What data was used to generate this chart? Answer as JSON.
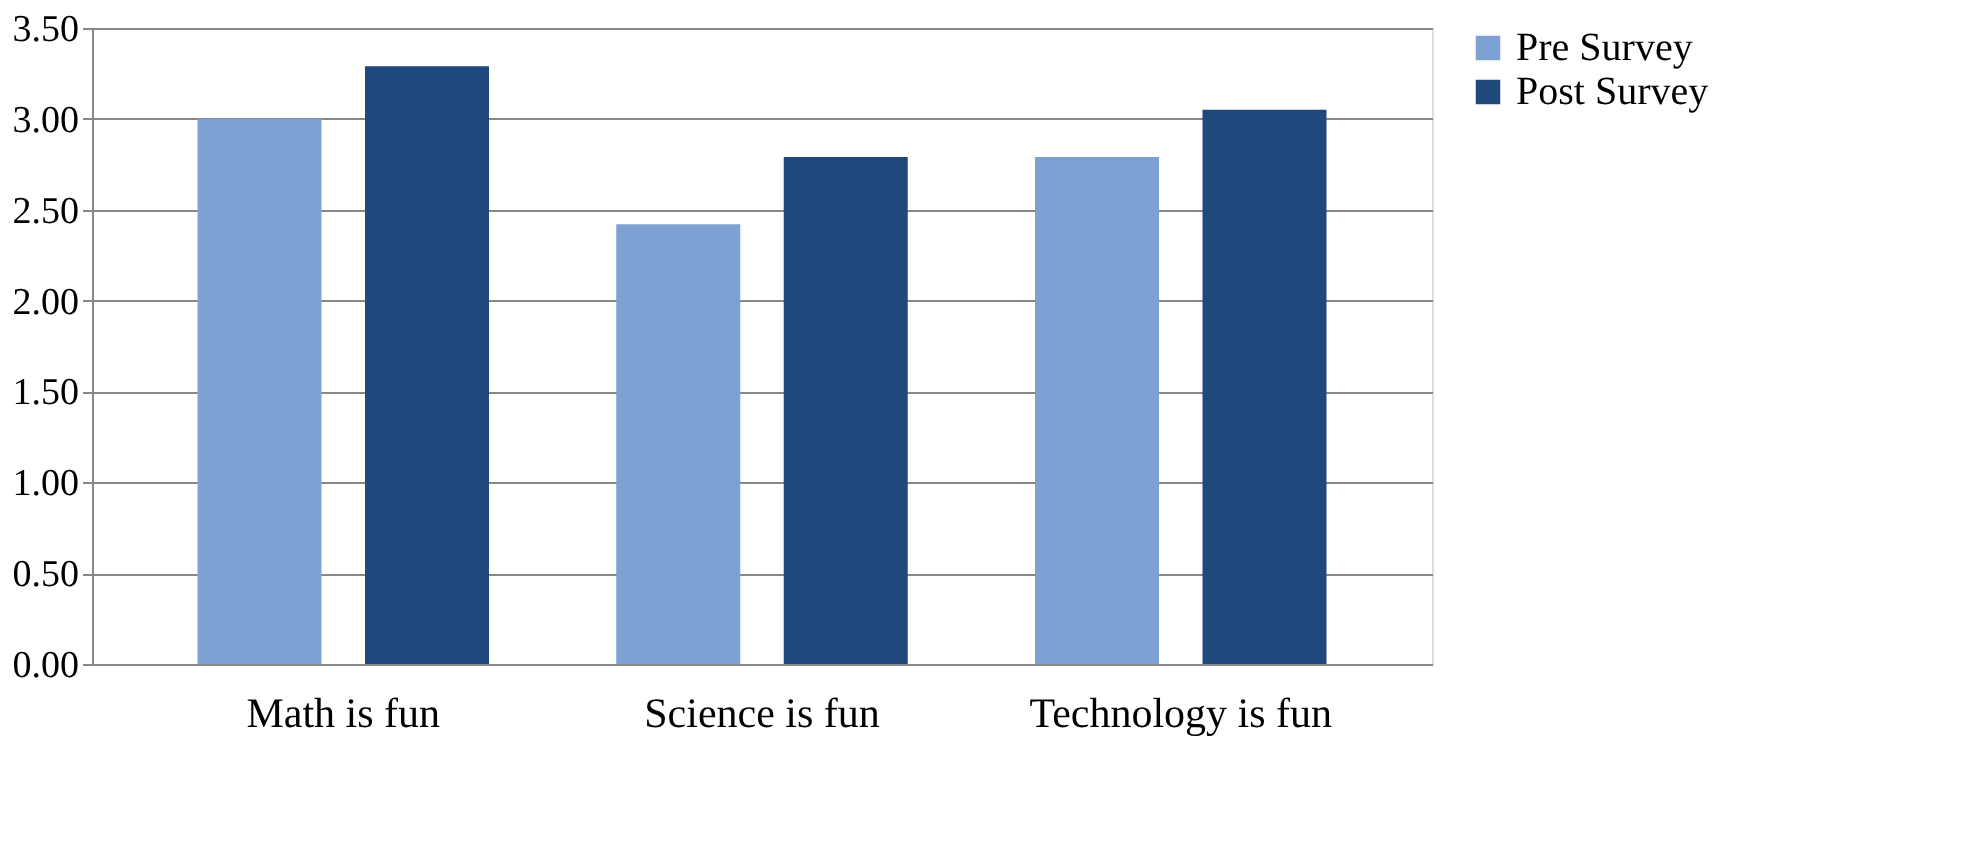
{
  "chart_data": {
    "type": "bar",
    "categories": [
      "Math is fun",
      "Science is fun",
      "Technology is fun"
    ],
    "series": [
      {
        "name": "Pre Survey",
        "color": "#7ea1d3",
        "values": [
          3.0,
          2.42,
          2.79
        ]
      },
      {
        "name": "Post Survey",
        "color": "#1f497d",
        "values": [
          3.29,
          2.79,
          3.05
        ]
      }
    ],
    "ylim": [
      0,
      3.5
    ],
    "yticks": [
      {
        "value": 0,
        "label": "0.00"
      },
      {
        "value": 0.5,
        "label": "0.50"
      },
      {
        "value": 1,
        "label": "1.00"
      },
      {
        "value": 1.5,
        "label": "1.50"
      },
      {
        "value": 2,
        "label": "2.00"
      },
      {
        "value": 2.5,
        "label": "2.50"
      },
      {
        "value": 3,
        "label": "3.00"
      },
      {
        "value": 3.5,
        "label": "3.50"
      }
    ],
    "grid": "y",
    "legend": "right"
  }
}
